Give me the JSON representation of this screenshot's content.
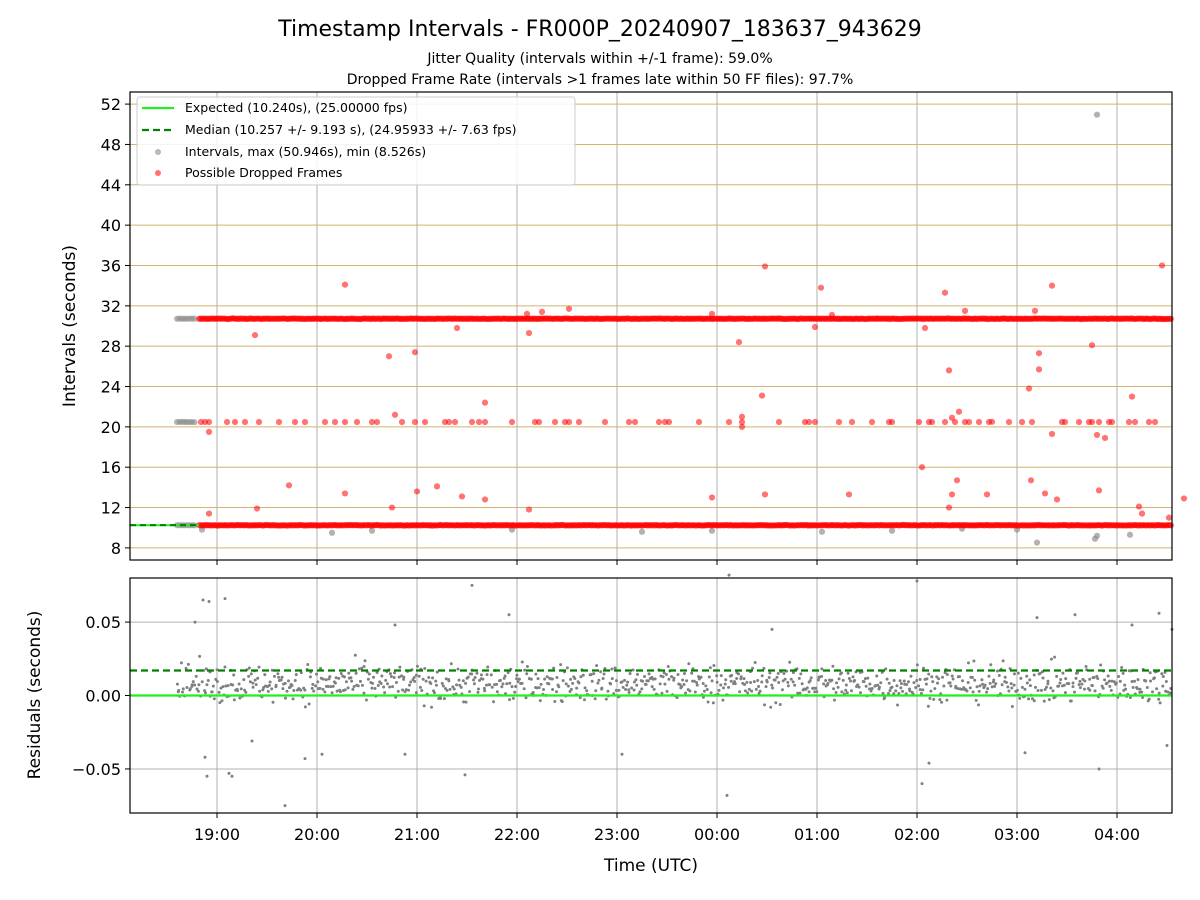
{
  "figure": {
    "title": "Timestamp Intervals - FR000P_20240907_183637_943629",
    "subtitle_1": "Jitter Quality (intervals within +/-1 frame): 59.0%",
    "subtitle_2": "Dropped Frame Rate (intervals >1 frames late within 50 FF files): 97.7%"
  },
  "chart_data": [
    {
      "type": "scatter",
      "panel": "intervals",
      "ylabel": "Intervals (seconds)",
      "xlabel": "",
      "x_unit": "hours since 18:00 UTC",
      "xlim": [
        0.13,
        10.55
      ],
      "ylim": [
        6.8,
        53.2
      ],
      "yticks": [
        8,
        12,
        16,
        20,
        24,
        28,
        32,
        36,
        40,
        44,
        48,
        52
      ],
      "ytick_labels": [
        "8",
        "12",
        "16",
        "20",
        "24",
        "28",
        "32",
        "36",
        "40",
        "44",
        "48",
        "52"
      ],
      "grid": "horizontal lines at y ticks (tan), vertical lines at x ticks (gray)",
      "legend": {
        "placement": "upper-left",
        "entries": [
          {
            "label": "Expected (10.240s), (25.00000 fps)",
            "style": "line",
            "color": "#22ee22"
          },
          {
            "label": "Median (10.257 +/- 9.193 s), (24.95933 +/- 7.63 fps)",
            "style": "dashed",
            "color": "#008000"
          },
          {
            "label": "Intervals, max (50.946s), min (8.526s)",
            "style": "marker",
            "color": "#888888"
          },
          {
            "label": "Possible Dropped Frames",
            "style": "marker",
            "color": "#ff0000"
          }
        ]
      },
      "series": [
        {
          "name": "Expected (10.240s), (25.00000 fps)",
          "kind": "hline",
          "y": 10.24,
          "color": "#22ee22"
        },
        {
          "name": "Median (10.257 +/- 9.193 s), (24.95933 +/- 7.63 fps)",
          "kind": "hline-dashed",
          "y": 10.257,
          "color": "#008000"
        },
        {
          "name": "Intervals, max (50.946s), min (8.526s)",
          "kind": "points",
          "color": "#888888",
          "bands": [
            {
              "x_start": 0.6,
              "x_end": 0.8,
              "y": 10.24
            },
            {
              "x_start": 0.6,
              "x_end": 0.8,
              "y": 20.48
            },
            {
              "x_start": 0.6,
              "x_end": 0.8,
              "y": 30.72
            }
          ],
          "points": [
            [
              0.85,
              9.8
            ],
            [
              2.15,
              9.5
            ],
            [
              2.55,
              9.7
            ],
            [
              3.95,
              9.8
            ],
            [
              5.25,
              9.6
            ],
            [
              5.95,
              9.7
            ],
            [
              9.0,
              9.8
            ],
            [
              8.45,
              9.9
            ],
            [
              7.05,
              9.6
            ],
            [
              7.75,
              9.7
            ],
            [
              9.2,
              8.53
            ],
            [
              9.78,
              8.9
            ],
            [
              9.8,
              9.2
            ],
            [
              10.13,
              9.3
            ],
            [
              9.8,
              50.95
            ]
          ]
        },
        {
          "name": "Possible Dropped Frames",
          "kind": "points",
          "color": "#ff0000",
          "bands": [
            {
              "x_start": 0.82,
              "x_end": 10.55,
              "y": 10.24
            },
            {
              "x_start": 0.82,
              "x_end": 10.55,
              "y": 30.72
            }
          ],
          "points": [
            [
              0.92,
              11.4
            ],
            [
              1.4,
              11.9
            ],
            [
              1.72,
              14.2
            ],
            [
              2.28,
              13.4
            ],
            [
              2.75,
              12.0
            ],
            [
              3.0,
              13.6
            ],
            [
              3.2,
              14.1
            ],
            [
              3.45,
              13.1
            ],
            [
              3.68,
              12.8
            ],
            [
              4.12,
              11.8
            ],
            [
              5.95,
              13.0
            ],
            [
              6.48,
              13.3
            ],
            [
              7.32,
              13.3
            ],
            [
              8.32,
              12.0
            ],
            [
              8.35,
              13.3
            ],
            [
              8.4,
              14.7
            ],
            [
              8.7,
              13.3
            ],
            [
              9.14,
              14.7
            ],
            [
              9.28,
              13.4
            ],
            [
              9.4,
              12.8
            ],
            [
              9.82,
              13.7
            ],
            [
              10.52,
              11.0
            ],
            [
              10.67,
              12.9
            ],
            [
              10.22,
              12.1
            ],
            [
              10.25,
              11.4
            ],
            [
              0.92,
              19.5
            ],
            [
              6.25,
              21.0
            ],
            [
              6.25,
              20.0
            ],
            [
              6.45,
              23.1
            ],
            [
              9.12,
              23.8
            ],
            [
              9.35,
              19.3
            ],
            [
              9.8,
              19.2
            ],
            [
              9.88,
              18.9
            ],
            [
              10.15,
              23.0
            ],
            [
              8.42,
              21.5
            ],
            [
              8.35,
              20.9
            ],
            [
              2.78,
              21.2
            ],
            [
              3.68,
              22.4
            ],
            [
              8.05,
              16.0
            ],
            [
              8.75,
              20.5
            ],
            [
              0.84,
              20.48
            ],
            [
              0.88,
              20.48
            ],
            [
              0.92,
              20.48
            ],
            [
              1.1,
              20.48
            ],
            [
              1.18,
              20.48
            ],
            [
              1.28,
              20.48
            ],
            [
              1.42,
              20.48
            ],
            [
              1.62,
              20.48
            ],
            [
              1.78,
              20.48
            ],
            [
              1.88,
              20.48
            ],
            [
              2.08,
              20.48
            ],
            [
              2.18,
              20.48
            ],
            [
              2.28,
              20.48
            ],
            [
              2.4,
              20.48
            ],
            [
              2.55,
              20.48
            ],
            [
              2.6,
              20.48
            ],
            [
              2.85,
              20.48
            ],
            [
              2.98,
              20.48
            ],
            [
              3.08,
              20.48
            ],
            [
              3.28,
              20.48
            ],
            [
              3.32,
              20.48
            ],
            [
              3.38,
              20.48
            ],
            [
              3.55,
              20.48
            ],
            [
              3.62,
              20.48
            ],
            [
              3.68,
              20.48
            ],
            [
              3.95,
              20.48
            ],
            [
              4.18,
              20.48
            ],
            [
              4.22,
              20.48
            ],
            [
              4.38,
              20.48
            ],
            [
              4.48,
              20.48
            ],
            [
              4.52,
              20.48
            ],
            [
              4.62,
              20.48
            ],
            [
              4.88,
              20.48
            ],
            [
              5.12,
              20.48
            ],
            [
              5.18,
              20.48
            ],
            [
              5.42,
              20.48
            ],
            [
              5.48,
              20.48
            ],
            [
              5.52,
              20.48
            ],
            [
              5.82,
              20.48
            ],
            [
              6.12,
              20.48
            ],
            [
              6.25,
              20.48
            ],
            [
              6.62,
              20.48
            ],
            [
              6.88,
              20.48
            ],
            [
              6.92,
              20.48
            ],
            [
              6.98,
              20.48
            ],
            [
              7.22,
              20.48
            ],
            [
              7.35,
              20.48
            ],
            [
              7.55,
              20.48
            ],
            [
              7.72,
              20.48
            ],
            [
              7.75,
              20.48
            ],
            [
              8.02,
              20.48
            ],
            [
              8.12,
              20.48
            ],
            [
              8.15,
              20.48
            ],
            [
              8.28,
              20.48
            ],
            [
              8.38,
              20.48
            ],
            [
              8.48,
              20.48
            ],
            [
              8.52,
              20.48
            ],
            [
              8.62,
              20.48
            ],
            [
              8.72,
              20.48
            ],
            [
              8.92,
              20.48
            ],
            [
              9.05,
              20.48
            ],
            [
              9.15,
              20.48
            ],
            [
              9.45,
              20.48
            ],
            [
              9.48,
              20.48
            ],
            [
              9.62,
              20.48
            ],
            [
              9.82,
              20.48
            ],
            [
              10.12,
              20.48
            ],
            [
              10.18,
              20.48
            ],
            [
              10.32,
              20.48
            ],
            [
              10.38,
              20.48
            ],
            [
              9.75,
              20.48
            ],
            [
              9.72,
              20.48
            ],
            [
              9.92,
              20.48
            ],
            [
              9.95,
              20.48
            ],
            [
              1.38,
              29.1
            ],
            [
              2.72,
              27.0
            ],
            [
              2.98,
              27.4
            ],
            [
              3.4,
              29.8
            ],
            [
              4.12,
              29.3
            ],
            [
              6.22,
              28.4
            ],
            [
              6.98,
              29.9
            ],
            [
              8.08,
              29.8
            ],
            [
              9.22,
              25.7
            ],
            [
              9.22,
              27.3
            ],
            [
              9.75,
              28.1
            ],
            [
              8.32,
              25.6
            ],
            [
              4.1,
              31.2
            ],
            [
              4.25,
              31.4
            ],
            [
              4.52,
              31.7
            ],
            [
              5.95,
              31.2
            ],
            [
              8.48,
              31.5
            ],
            [
              9.18,
              31.5
            ],
            [
              7.15,
              31.1
            ],
            [
              2.28,
              34.1
            ],
            [
              6.48,
              35.9
            ],
            [
              7.04,
              33.8
            ],
            [
              8.28,
              33.3
            ],
            [
              9.35,
              34.0
            ],
            [
              10.45,
              36.0
            ]
          ]
        }
      ]
    },
    {
      "type": "scatter",
      "panel": "residuals",
      "ylabel": "Residuals (seconds)",
      "xlabel": "Time (UTC)",
      "x_unit": "hours since 18:00 UTC",
      "xlim": [
        0.13,
        10.55
      ],
      "ylim": [
        -0.08,
        0.08
      ],
      "yticks": [
        -0.05,
        0.0,
        0.05
      ],
      "ytick_labels": [
        "−0.05",
        "0.00",
        "0.05"
      ],
      "xticks": [
        1,
        2,
        3,
        4,
        5,
        6,
        7,
        8,
        9,
        10
      ],
      "xtick_labels": [
        "19:00",
        "20:00",
        "21:00",
        "22:00",
        "23:00",
        "00:00",
        "01:00",
        "02:00",
        "03:00",
        "04:00"
      ],
      "grid": "both axes (gray)",
      "series": [
        {
          "kind": "hline",
          "y": 0.0,
          "color": "#22ee22"
        },
        {
          "kind": "hline-dashed",
          "y": 0.017,
          "color": "#008000"
        },
        {
          "kind": "points",
          "color": "#808080",
          "x_start": 0.6,
          "x_end": 10.55,
          "count": 950,
          "center": 0.008,
          "spread": 0.022,
          "outliers": [
            [
              0.78,
              0.05
            ],
            [
              0.86,
              0.065
            ],
            [
              0.92,
              0.064
            ],
            [
              1.08,
              0.066
            ],
            [
              0.88,
              -0.042
            ],
            [
              0.9,
              -0.055
            ],
            [
              1.12,
              -0.053
            ],
            [
              1.15,
              -0.055
            ],
            [
              1.35,
              -0.031
            ],
            [
              1.68,
              -0.075
            ],
            [
              1.88,
              -0.043
            ],
            [
              2.05,
              -0.04
            ],
            [
              2.78,
              0.048
            ],
            [
              2.88,
              -0.04
            ],
            [
              3.55,
              0.075
            ],
            [
              3.48,
              -0.054
            ],
            [
              3.92,
              0.055
            ],
            [
              5.05,
              -0.04
            ],
            [
              6.1,
              -0.068
            ],
            [
              6.12,
              0.082
            ],
            [
              6.55,
              0.045
            ],
            [
              8.0,
              0.078
            ],
            [
              8.05,
              -0.06
            ],
            [
              8.12,
              -0.046
            ],
            [
              9.2,
              0.053
            ],
            [
              9.08,
              -0.039
            ],
            [
              9.58,
              0.055
            ],
            [
              10.15,
              0.048
            ],
            [
              9.82,
              -0.05
            ],
            [
              10.5,
              -0.034
            ],
            [
              10.42,
              0.056
            ],
            [
              10.55,
              0.045
            ]
          ]
        }
      ]
    }
  ]
}
